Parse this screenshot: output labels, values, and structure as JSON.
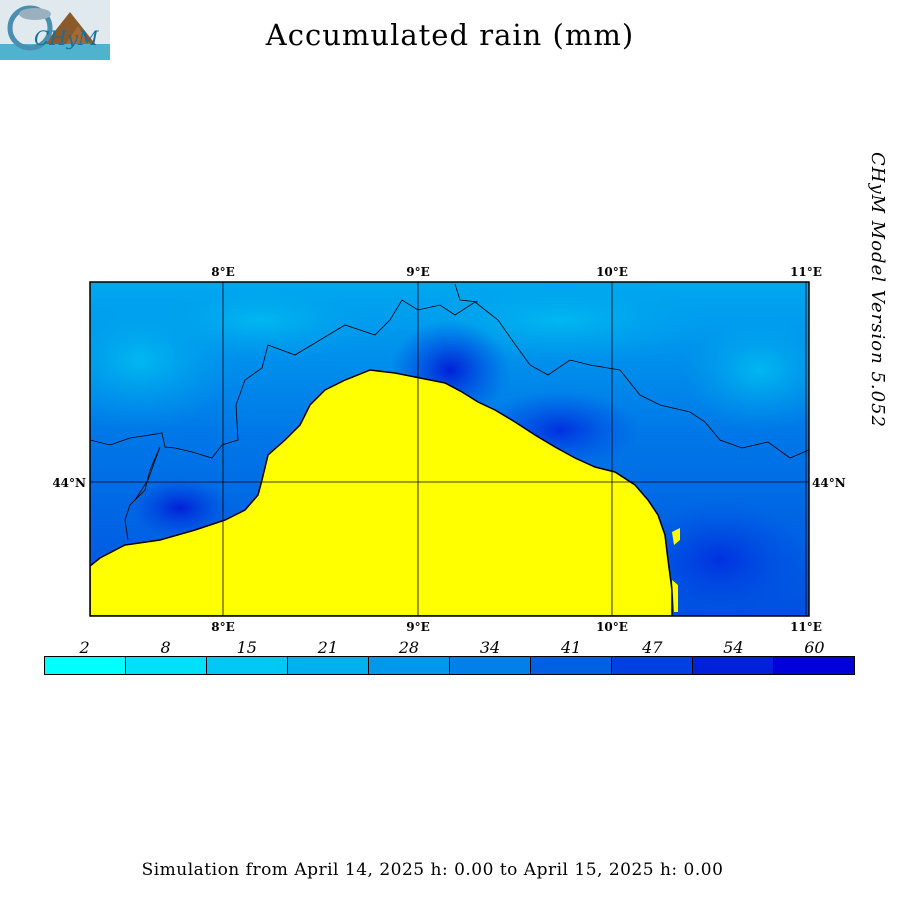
{
  "header": {
    "title": "Accumulated rain (mm)",
    "logo_text": "CHyM"
  },
  "side_label": "CHyM Model Version 5.052",
  "map": {
    "lon_labels_top": [
      "8°E",
      "9°E",
      "10°E",
      "11°E"
    ],
    "lon_labels_bottom": [
      "8°E",
      "9°E",
      "10°E",
      "11°E"
    ],
    "lat_label_left": "44°N",
    "lat_label_right": "44°N",
    "colors": {
      "sea": "#ffff00",
      "low_rain": "#00c0f0",
      "high_rain": "#0010e0"
    }
  },
  "colorbar": {
    "labels": [
      "2",
      "8",
      "15",
      "21",
      "28",
      "34",
      "41",
      "47",
      "54",
      "60"
    ],
    "colors": [
      "#00ffff",
      "#00e0f8",
      "#00c8f4",
      "#00b0f0",
      "#0098ec",
      "#0080e8",
      "#0060e4",
      "#0040e0",
      "#0020dc",
      "#0000d8"
    ]
  },
  "footer": {
    "simulation": "Simulation from April 14, 2025 h: 0.00 to April 15, 2025 h: 0.00"
  }
}
